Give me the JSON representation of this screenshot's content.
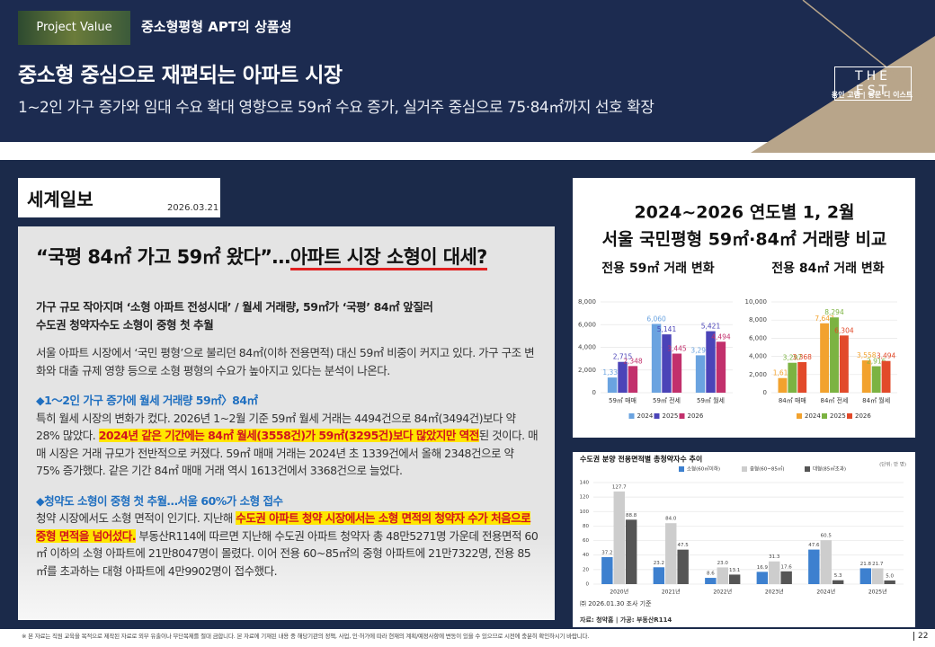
{
  "header": {
    "tag": "Project Value",
    "section": "중소형평형 APT의 상품성",
    "title": "중소형 중심으로 재편되는 아파트 시장",
    "subtitle": "1~2인 가구 증가와 임대 수요 확대 영향으로 59㎡ 수요 증가, 실거주 중심으로 75·84㎡까지 선호 확장",
    "logo": "THE EST",
    "logo_sub": "용인 고림 | 동문 디 이스트"
  },
  "article": {
    "source": "세계일보",
    "date": "2026.03.21",
    "headline": [
      {
        "text": "“국평 84㎡ 가고 59㎡ 왔다”…"
      },
      {
        "text": "아파트 시장 소형이 대세?",
        "underline": true
      }
    ],
    "deck": [
      "가구 규모 작아지며 ‘소형 아파트 전성시대’ / 월세 거래량, 59㎡가 ‘국평’ 84㎡ 앞질러",
      "수도권 청약자수도 소형이 중형 첫 추월"
    ],
    "blocks": [
      {
        "style": "text",
        "segments": [
          {
            "text": "서울 아파트 시장에서 ‘국민 평형’으로 불리던 84㎡(이하 전용면적) 대신 59㎡ 비중이 커지고 있다. 가구 구조 변화와 대출 규제 영향 등으로 소형 평형의 수요가 높아지고 있다는 분석이 나온다."
          }
        ]
      },
      {
        "style": "heading",
        "segments": [
          {
            "text": "◆1～2인 가구 증가에 월세 거래량 59㎡〉84㎡"
          }
        ]
      },
      {
        "style": "text",
        "segments": [
          {
            "text": "특히 월세 시장의 변화가 컸다. 2026년 1~2월 기준 59㎡ 월세 거래는 4494건으로 84㎡(3494건)보다 약 28% 많았다. "
          },
          {
            "text": "2024년 같은 기간에는 84㎡ 월세(3558건)가 59㎡(3295건)보다 많았지만 역전",
            "mark": true
          },
          {
            "text": "된 것이다. 매매 시장은 거래 규모가 전반적으로 커졌다. 59㎡ 매매 거래는 2024년 초 1339건에서 올해 2348건으로 약 75% 증가했다. 같은 기간 84㎡ 매매 거래 역시 1613건에서 3368건으로 늘었다."
          }
        ]
      },
      {
        "style": "heading",
        "segments": [
          {
            "text": "◆청약도 소형이 중형 첫 추월…서울 60%가 소형 접수"
          }
        ]
      },
      {
        "style": "text",
        "segments": [
          {
            "text": "청약 시장에서도 소형 면적이 인기다. 지난해 "
          },
          {
            "text": "수도권 아파트 청약 시장에서는 소형 면적의 청약자 수가 처음으로 중형 면적을 넘어섰다.",
            "mark": true
          },
          {
            "text": " 부동산R114에 따르면 지난해 수도권 아파트 청약자 총 48만5271명 가운데 전용면적 60㎡ 이하의 소형 아파트에 21만8047명이 몰렸다. 이어 전용 60~85㎡의 중형 아파트에 21만7322명, 전용 85㎡를 초과하는 대형 아파트에 4만9902명이 접수했다."
          }
        ]
      }
    ]
  },
  "panel": {
    "title": [
      "2024~2026 연도별 1, 2월",
      "서울 국민평형 59㎡·84㎡ 거래량 비교"
    ]
  },
  "chart_data": [
    {
      "type": "bar",
      "title": "전용 59㎡ 거래 변화",
      "categories": [
        "59㎡ 매매",
        "59㎡ 전세",
        "59㎡ 월세"
      ],
      "series": [
        {
          "name": "2024",
          "color": "#6aa3e0",
          "values": [
            1339,
            6060,
            3295
          ],
          "value_labels": [
            "1,339",
            "6,060",
            "3,295"
          ]
        },
        {
          "name": "2025",
          "color": "#4b44b8",
          "values": [
            2715,
            5141,
            5421
          ],
          "value_labels": [
            "2,715",
            "5,141",
            "5,421"
          ]
        },
        {
          "name": "2026",
          "color": "#c2306c",
          "values": [
            2348,
            3445,
            4494
          ],
          "value_labels": [
            "2,348",
            "3,445",
            "4,494"
          ]
        }
      ],
      "ylim": [
        0,
        8000
      ],
      "yticks": [
        0,
        {
          "value": 2000,
          "label": "2,000"
        },
        {
          "value": 4000,
          "label": "4,000"
        },
        {
          "value": 6000,
          "label": "6,000"
        },
        {
          "value": 8000,
          "label": "8,000"
        }
      ],
      "grid": true,
      "legend": "bottom"
    },
    {
      "type": "bar",
      "title": "전용 84㎡ 거래 변화",
      "categories": [
        "84㎡ 매매",
        "84㎡ 전세",
        "84㎡ 월세"
      ],
      "series": [
        {
          "name": "2024",
          "color": "#f2a22e",
          "values": [
            1613,
            7647,
            3558
          ],
          "value_labels": [
            "1,613",
            "7,647",
            "3,558"
          ]
        },
        {
          "name": "2025",
          "color": "#7cb342",
          "values": [
            3297,
            8294,
            2916
          ],
          "value_labels": [
            "3,297",
            "8,294",
            "2,916"
          ]
        },
        {
          "name": "2026",
          "color": "#e24a2a",
          "values": [
            3368,
            6304,
            3494
          ],
          "value_labels": [
            "3,368",
            "6,304",
            "3,494"
          ]
        }
      ],
      "ylim": [
        0,
        10000
      ],
      "yticks": [
        0,
        {
          "value": 2000,
          "label": "2,000"
        },
        {
          "value": 4000,
          "label": "4,000"
        },
        {
          "value": 6000,
          "label": "6,000"
        },
        {
          "value": 8000,
          "label": "8,000"
        },
        {
          "value": 10000,
          "label": "10,000"
        }
      ],
      "grid": true,
      "legend": "bottom"
    },
    {
      "type": "bar",
      "title": "수도권 분양 전용면적별 총청약자수 추이",
      "unit": "(단위: 만 명)",
      "categories": [
        "2020년",
        "2021년",
        "2022년",
        "2023년",
        "2024년",
        "2025년"
      ],
      "series": [
        {
          "name": "소형(60㎡이하)",
          "color": "#3d80cf",
          "values": [
            37.2,
            23.2,
            8.6,
            16.9,
            47.6,
            21.8
          ]
        },
        {
          "name": "중형(60~85㎡)",
          "color": "#cdcdcd",
          "values": [
            127.7,
            84.0,
            23.0,
            31.3,
            60.5,
            21.7
          ],
          "value_labels": [
            "127.7",
            "84.0",
            "23.0",
            "31.3",
            "60.5",
            "21.7"
          ]
        },
        {
          "name": "대형(85㎡초과)",
          "color": "#555555",
          "values": [
            88.8,
            47.5,
            13.1,
            17.6,
            5.3,
            5.0
          ],
          "value_labels": [
            "88.8",
            "47.5",
            "13.1",
            "17.6",
            "5.3",
            "5.0"
          ]
        }
      ],
      "ylim": [
        0,
        140
      ],
      "yticks": [
        0,
        20,
        40,
        60,
        80,
        100,
        120,
        140
      ],
      "grid": true,
      "legend": "top",
      "notes": [
        "㈜ 2026.01.30 조사 기준",
        "자료: 청약홈 | 가공: 부동산R114"
      ]
    }
  ],
  "footer": {
    "note": "※ 본 자료는 직원 교육을 목적으로 제작된 자료로 외부 유출이나 무단복제를 절대 금합니다. 본 자료에 기재된 내용 중 해당기관의 정책, 사업, 인·허가에 따라 현재의 계획/예정사항에 변동이 있을 수 있으므로 시전에 충분히 확인하시기 바랍니다.",
    "page": "22"
  }
}
